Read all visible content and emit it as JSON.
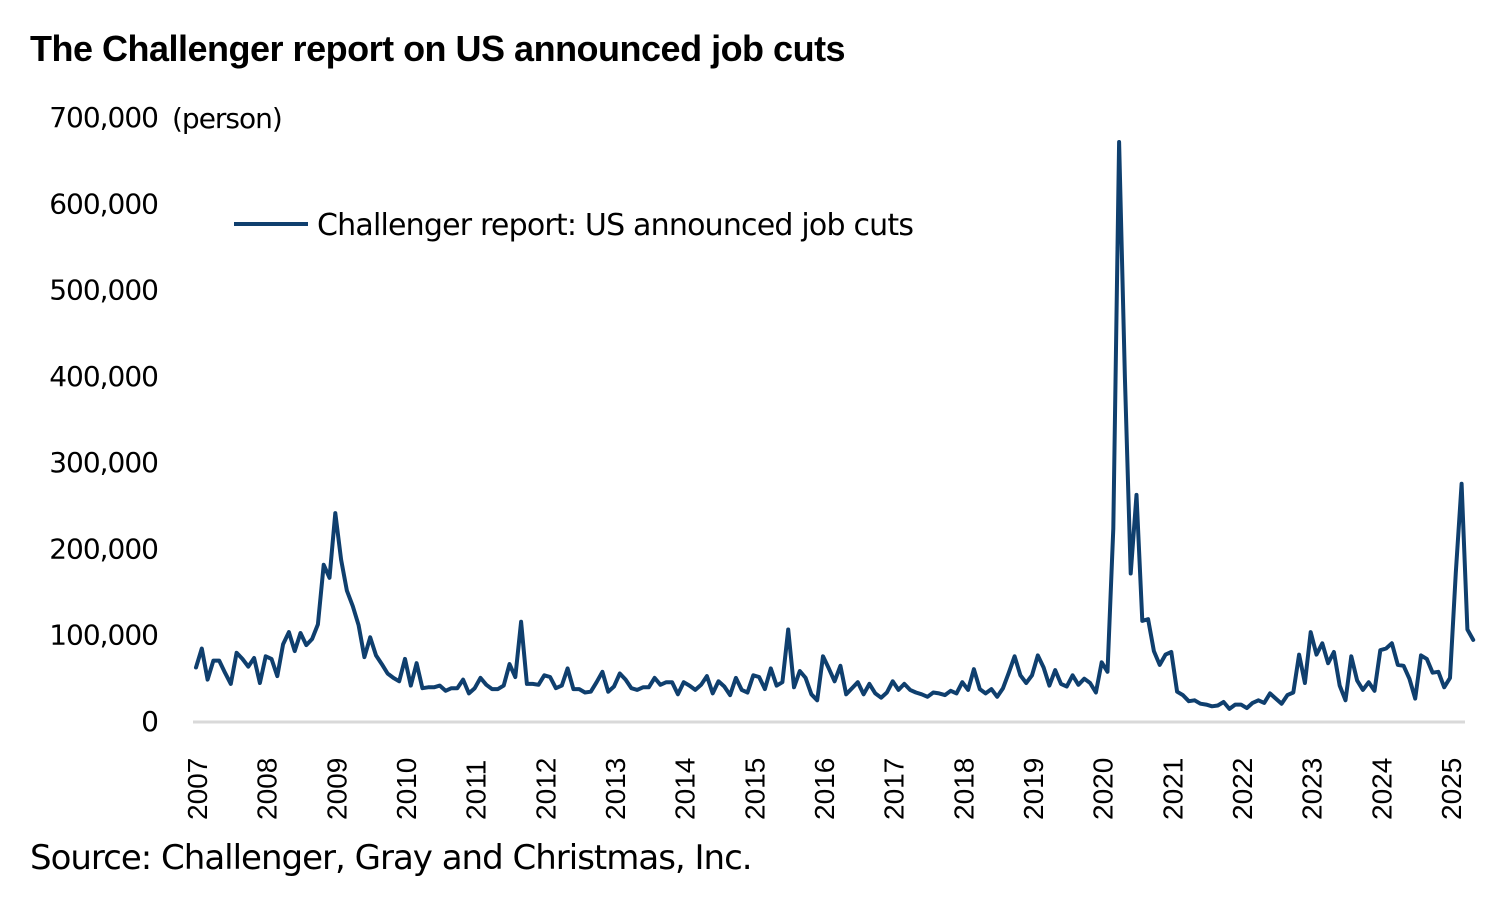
{
  "title": "The Challenger report on US announced job cuts",
  "source": "Source: Challenger, Gray and Christmas, Inc.",
  "unit_label": "(person)",
  "colors": {
    "series": "#0f3f6e",
    "axis": "#d9d9d9",
    "text": "#000000"
  },
  "chart_data": {
    "type": "line",
    "title": "The Challenger report on US announced job cuts",
    "xlabel": "",
    "ylabel": "(person)",
    "ylim": [
      0,
      700000
    ],
    "yticks": [
      0,
      100000,
      200000,
      300000,
      400000,
      500000,
      600000,
      700000
    ],
    "ytick_labels": [
      "0",
      "100,000",
      "200,000",
      "300,000",
      "400,000",
      "500,000",
      "600,000",
      "700,000"
    ],
    "xtick_labels": [
      "2007",
      "2008",
      "2009",
      "2010",
      "2011",
      "2012",
      "2013",
      "2014",
      "2015",
      "2016",
      "2017",
      "2018",
      "2019",
      "2020",
      "2021",
      "2022",
      "2023",
      "2024",
      "2025"
    ],
    "x_start": "2007-01",
    "frequency": "monthly",
    "grid": false,
    "legend": {
      "position": "top-left",
      "entries": [
        "Challenger report: US announced job cuts"
      ]
    },
    "series": [
      {
        "name": "Challenger report: US announced job cuts",
        "values": [
          62000,
          84000,
          48000,
          70000,
          70000,
          56000,
          43000,
          79000,
          72000,
          63000,
          73000,
          44000,
          75000,
          72000,
          52000,
          89000,
          103000,
          81000,
          102000,
          88000,
          95000,
          112000,
          181000,
          166000,
          241000,
          187000,
          151000,
          133000,
          111000,
          74000,
          97000,
          76000,
          66000,
          55000,
          50000,
          46000,
          72000,
          41000,
          67000,
          38000,
          39000,
          39000,
          41000,
          35000,
          38000,
          38000,
          48000,
          32000,
          38000,
          50000,
          42000,
          37000,
          37000,
          41000,
          66000,
          51000,
          115000,
          43000,
          43000,
          42000,
          53000,
          51000,
          38000,
          41000,
          61000,
          37000,
          37000,
          33000,
          34000,
          45000,
          57000,
          34000,
          40000,
          55000,
          48000,
          38000,
          36000,
          39000,
          39000,
          50000,
          42000,
          45000,
          45000,
          31000,
          45000,
          41000,
          36000,
          42000,
          52000,
          32000,
          46000,
          40000,
          30000,
          50000,
          36000,
          33000,
          53000,
          51000,
          37000,
          61000,
          41000,
          45000,
          106000,
          39000,
          58000,
          50000,
          31000,
          24000,
          75000,
          61000,
          46000,
          64000,
          31000,
          38000,
          45000,
          31000,
          43000,
          32000,
          27000,
          33000,
          46000,
          36000,
          43000,
          36000,
          33000,
          31000,
          28000,
          33000,
          32000,
          30000,
          35000,
          32000,
          45000,
          36000,
          60000,
          37000,
          32000,
          37000,
          28000,
          38000,
          56000,
          75000,
          53000,
          44000,
          53000,
          76000,
          62000,
          41000,
          59000,
          43000,
          40000,
          53000,
          42000,
          49000,
          44000,
          33000,
          68000,
          57000,
          223000,
          671000,
          398000,
          171000,
          262000,
          116000,
          118000,
          81000,
          65000,
          77000,
          80000,
          34000,
          30000,
          23000,
          24000,
          20000,
          19000,
          17000,
          18000,
          22000,
          14000,
          19000,
          19000,
          15000,
          21000,
          24000,
          21000,
          32000,
          26000,
          20000,
          30000,
          33000,
          77000,
          44000,
          103000,
          77000,
          90000,
          67000,
          80000,
          41000,
          24000,
          75000,
          47000,
          36000,
          45000,
          35000,
          82000,
          84000,
          90000,
          65000,
          64000,
          49000,
          26000,
          76000,
          72000,
          56000,
          57000,
          39000,
          50000,
          172000,
          275000,
          106000,
          94000
        ]
      }
    ]
  }
}
